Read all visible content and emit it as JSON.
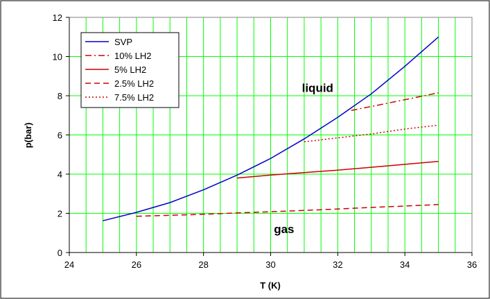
{
  "chart_data": {
    "type": "line",
    "title": "",
    "xlabel": "T (K)",
    "ylabel": "p(bar)",
    "xlim": [
      24,
      36
    ],
    "ylim": [
      0,
      12
    ],
    "x_ticks": [
      24,
      26,
      28,
      30,
      32,
      34,
      36
    ],
    "y_ticks": [
      0,
      2,
      4,
      6,
      8,
      10,
      12
    ],
    "grid": true,
    "grid_color": "#00ff00",
    "legend_position": "top-left",
    "annotations": [
      {
        "text": "liquid",
        "x": 31.4,
        "y": 8.2
      },
      {
        "text": "gas",
        "x": 30.4,
        "y": 1.0
      }
    ],
    "series": [
      {
        "name": "SVP",
        "color": "#0000cc",
        "dash": "solid",
        "x": [
          25,
          26,
          27,
          28,
          29,
          30,
          31,
          32,
          33,
          34,
          35
        ],
        "y": [
          1.62,
          2.05,
          2.55,
          3.2,
          3.95,
          4.8,
          5.8,
          6.9,
          8.1,
          9.5,
          11.0
        ]
      },
      {
        "name": "10% LH2",
        "color": "#cc0000",
        "dash": "dashdot",
        "x": [
          32.4,
          33,
          34,
          35
        ],
        "y": [
          7.25,
          7.45,
          7.8,
          8.15
        ]
      },
      {
        "name": "5% LH2",
        "color": "#cc0000",
        "dash": "solid",
        "x": [
          29,
          30,
          31,
          32,
          33,
          34,
          35
        ],
        "y": [
          3.8,
          3.95,
          4.08,
          4.2,
          4.35,
          4.5,
          4.65
        ]
      },
      {
        "name": "2.5% LH2",
        "color": "#cc0000",
        "dash": "dash",
        "x": [
          26,
          27,
          28,
          29,
          30,
          31,
          32,
          33,
          34,
          35
        ],
        "y": [
          1.85,
          1.9,
          1.95,
          2.02,
          2.08,
          2.15,
          2.22,
          2.3,
          2.37,
          2.45
        ]
      },
      {
        "name": "7.5% LH2",
        "color": "#cc0000",
        "dash": "dot",
        "x": [
          31,
          32,
          33,
          34,
          35
        ],
        "y": [
          5.65,
          5.85,
          6.05,
          6.3,
          6.5
        ]
      }
    ]
  }
}
